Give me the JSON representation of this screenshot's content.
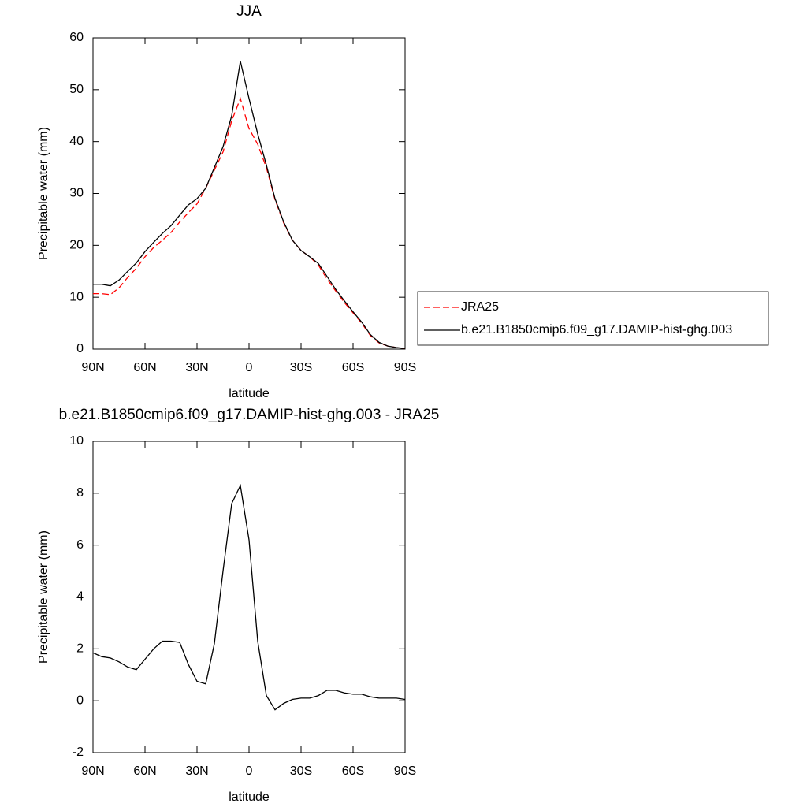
{
  "chart_data": [
    {
      "type": "line",
      "title": "JJA",
      "x_label": "latitude",
      "y_label": "Precipitable water (mm)",
      "x": [
        90,
        85,
        80,
        75,
        70,
        65,
        60,
        55,
        50,
        45,
        40,
        35,
        30,
        25,
        20,
        15,
        10,
        5,
        0,
        -5,
        -10,
        -15,
        -20,
        -25,
        -30,
        -35,
        -40,
        -45,
        -50,
        -55,
        -60,
        -65,
        -70,
        -75,
        -80,
        -85,
        -90
      ],
      "series": [
        {
          "name": "JRA25",
          "color": "#ff0000",
          "linestyle": "dashed",
          "values": [
            10.7,
            10.7,
            10.5,
            11.8,
            13.8,
            15.6,
            17.8,
            19.6,
            21.0,
            22.5,
            24.5,
            26.3,
            28.0,
            31.0,
            34.5,
            38.0,
            44.0,
            48.3,
            42.5,
            39.5,
            35.0,
            28.8,
            24.3,
            21.0,
            19.0,
            17.8,
            16.2,
            13.5,
            11.2,
            9.0,
            7.0,
            5.0,
            2.6,
            1.2,
            0.6,
            0.3,
            0.1
          ]
        },
        {
          "name": "b.e21.B1850cmip6.f09_g17.DAMIP-hist-ghg.003",
          "color": "#000000",
          "linestyle": "solid",
          "values": [
            12.5,
            12.5,
            12.2,
            13.3,
            15.0,
            16.6,
            18.8,
            20.6,
            22.3,
            23.8,
            25.8,
            27.8,
            29.0,
            31.0,
            35.0,
            39.0,
            45.0,
            55.5,
            48.3,
            41.5,
            35.5,
            29.0,
            24.5,
            21.0,
            19.0,
            17.8,
            16.5,
            14.0,
            11.5,
            9.3,
            7.2,
            5.2,
            2.8,
            1.3,
            0.6,
            0.3,
            0.1
          ]
        }
      ],
      "xlim": [
        90,
        -90
      ],
      "xticks": [
        {
          "value": 90,
          "label": "90N"
        },
        {
          "value": 60,
          "label": "60N"
        },
        {
          "value": 30,
          "label": "30N"
        },
        0,
        {
          "value": -30,
          "label": "30S"
        },
        {
          "value": -60,
          "label": "60S"
        },
        {
          "value": -90,
          "label": "90S"
        }
      ],
      "ylim": [
        0,
        60
      ],
      "yticks": [
        0,
        10,
        20,
        30,
        40,
        50,
        60
      ],
      "legend": "right"
    },
    {
      "type": "line",
      "title": "b.e21.B1850cmip6.f09_g17.DAMIP-hist-ghg.003 - JRA25",
      "x_label": "latitude",
      "y_label": "Precipitable water (mm)",
      "x": [
        90,
        85,
        80,
        75,
        70,
        65,
        60,
        55,
        50,
        45,
        40,
        35,
        30,
        25,
        20,
        15,
        10,
        5,
        0,
        -5,
        -10,
        -15,
        -20,
        -25,
        -30,
        -35,
        -40,
        -45,
        -50,
        -55,
        -60,
        -65,
        -70,
        -75,
        -80,
        -85,
        -90
      ],
      "color": "#000000",
      "values": [
        1.85,
        1.7,
        1.65,
        1.5,
        1.3,
        1.2,
        1.6,
        2.0,
        2.3,
        2.3,
        2.25,
        1.4,
        0.75,
        0.65,
        2.2,
        5.0,
        7.6,
        8.3,
        6.2,
        2.3,
        0.2,
        -0.35,
        -0.1,
        0.05,
        0.1,
        0.1,
        0.2,
        0.4,
        0.4,
        0.3,
        0.25,
        0.25,
        0.15,
        0.1,
        0.1,
        0.1,
        0.05
      ],
      "xlim": [
        90,
        -90
      ],
      "xticks": [
        {
          "value": 90,
          "label": "90N"
        },
        {
          "value": 60,
          "label": "60N"
        },
        {
          "value": 30,
          "label": "30N"
        },
        0,
        {
          "value": -30,
          "label": "30S"
        },
        {
          "value": -60,
          "label": "60S"
        },
        {
          "value": -90,
          "label": "90S"
        }
      ],
      "ylim": [
        -2,
        10
      ],
      "yticks": [
        -2,
        0,
        2,
        4,
        6,
        8,
        10
      ]
    }
  ]
}
